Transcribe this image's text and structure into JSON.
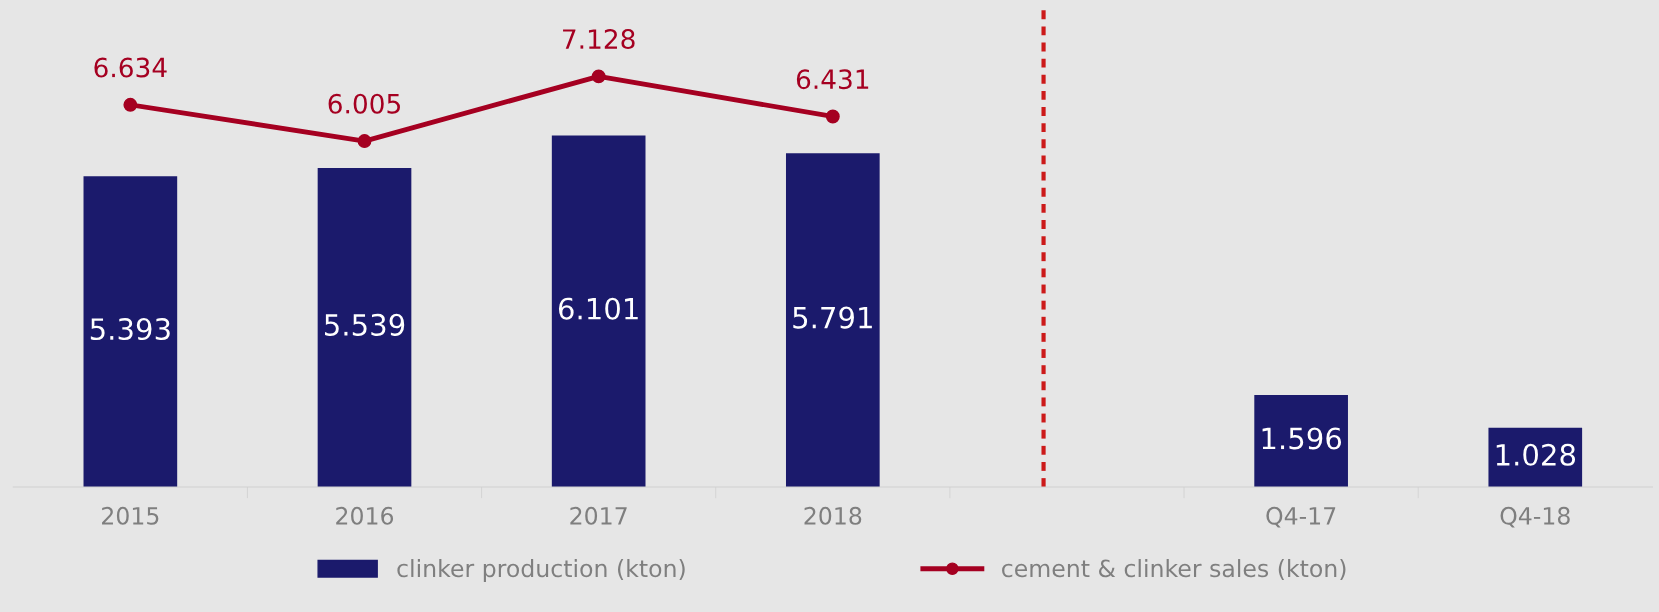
{
  "chart_data": {
    "type": "bar",
    "categories": [
      "2015",
      "2016",
      "2017",
      "2018",
      null,
      "Q4-17",
      "Q4-18"
    ],
    "series": [
      {
        "name": "clinker production (kton)",
        "color": "#1b1a6c",
        "values": [
          5.393,
          5.539,
          6.101,
          5.791,
          null,
          1.596,
          1.028
        ]
      },
      {
        "name": "cement & clinker sales (kton)",
        "type": "line",
        "color": "#a50021",
        "marker": "circle",
        "values": [
          6.634,
          6.005,
          7.128,
          6.431,
          null,
          null,
          null
        ]
      }
    ],
    "ylim": [
      0,
      8.4
    ],
    "data_labels": true,
    "grid": false,
    "legend": "bottom",
    "tick_labels": "x"
  }
}
